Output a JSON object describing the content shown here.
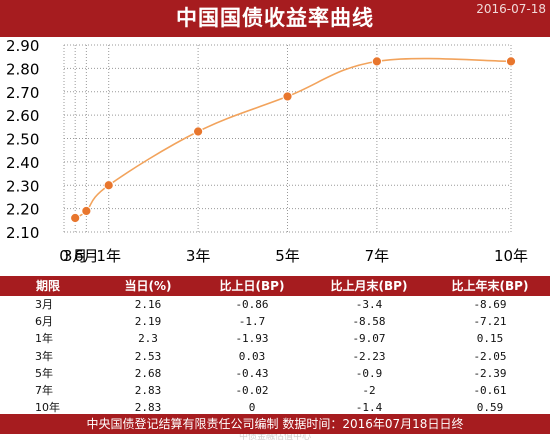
{
  "header": {
    "title": "中国国债收益率曲线",
    "ghost_text": "2016-07-18"
  },
  "chart_data": {
    "type": "line",
    "title": "中国国债收益率曲线",
    "x_labels": [
      "0",
      "3月",
      "6月",
      "1年",
      "3年",
      "5年",
      "7年",
      "10年"
    ],
    "x_years": [
      0,
      0.25,
      0.5,
      1,
      3,
      5,
      7,
      10
    ],
    "series": [
      {
        "x_years": [
          0.25,
          0.5,
          1,
          3,
          5,
          7,
          10
        ],
        "values": [
          2.16,
          2.19,
          2.3,
          2.53,
          2.68,
          2.83,
          2.83
        ]
      }
    ],
    "y_ticks": [
      "2.10",
      "2.20",
      "2.30",
      "2.40",
      "2.50",
      "2.60",
      "2.70",
      "2.80",
      "2.90"
    ],
    "ylim": [
      2.1,
      2.9
    ],
    "grid": true,
    "colors": {
      "line": "#f2a35c",
      "marker": "#e8762d",
      "grid": "#999999"
    }
  },
  "table": {
    "headers": [
      "期限",
      "当日(%)",
      "比上日(BP)",
      "比上月末(BP)",
      "比上年末(BP)"
    ],
    "rows": [
      [
        "3月",
        "2.16",
        "-0.86",
        "-3.4",
        "-8.69"
      ],
      [
        "6月",
        "2.19",
        "-1.7",
        "-8.58",
        "-7.21"
      ],
      [
        "1年",
        "2.3",
        "-1.93",
        "-9.07",
        "0.15"
      ],
      [
        "3年",
        "2.53",
        "0.03",
        "-2.23",
        "-2.05"
      ],
      [
        "5年",
        "2.68",
        "-0.43",
        "-0.9",
        "-2.39"
      ],
      [
        "7年",
        "2.83",
        "-0.02",
        "-2",
        "-0.61"
      ],
      [
        "10年",
        "2.83",
        "0",
        "-1.4",
        "0.59"
      ]
    ]
  },
  "footer": {
    "text": "中央国债登记结算有限责任公司编制 数据时间：2016年07月18日日终",
    "ghost_text": "中债金融估值中心"
  },
  "colors": {
    "brand_red": "#a61c1f"
  }
}
